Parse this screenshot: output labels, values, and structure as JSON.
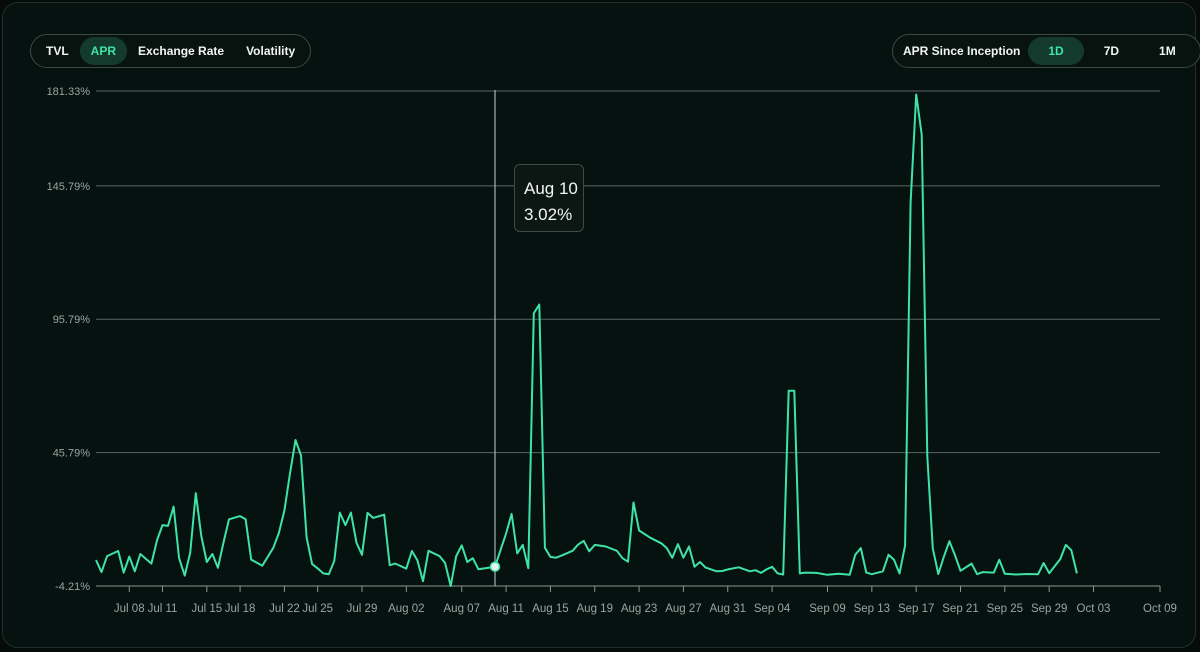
{
  "metric_tabs": [
    {
      "label": "TVL",
      "active": false
    },
    {
      "label": "APR",
      "active": true
    },
    {
      "label": "Exchange Rate",
      "active": false
    },
    {
      "label": "Volatility",
      "active": false
    }
  ],
  "range_group": {
    "label": "APR Since Inception",
    "options": [
      {
        "label": "1D",
        "active": true
      },
      {
        "label": "7D",
        "active": false
      },
      {
        "label": "1M",
        "active": false
      }
    ]
  },
  "tooltip": {
    "date": "Aug 10",
    "value": "3.02%"
  },
  "colors": {
    "line": "#3fe3a5",
    "accent": "#3fe3a5",
    "background": "#040b09"
  },
  "chart_data": {
    "type": "line",
    "ylim": [
      -4.21,
      181.33
    ],
    "y_ticks": [
      {
        "value": 181.33,
        "label": "181.33%"
      },
      {
        "value": 145.79,
        "label": "145.79%"
      },
      {
        "value": 95.79,
        "label": "95.79%"
      },
      {
        "value": 45.79,
        "label": "45.79%"
      },
      {
        "value": -4.21,
        "label": "-4.21%"
      }
    ],
    "x_start": "2024-07-05",
    "x_end": "2024-10-09",
    "x_ticks": [
      "Jul 08",
      "Jul 11",
      "Jul 15",
      "Jul 18",
      "Jul 22",
      "Jul 25",
      "Jul 29",
      "Aug 02",
      "Aug 07",
      "Aug 11",
      "Aug 15",
      "Aug 19",
      "Aug 23",
      "Aug 27",
      "Aug 31",
      "Sep 04",
      "Sep 09",
      "Sep 13",
      "Sep 17",
      "Sep 21",
      "Sep 25",
      "Sep 29",
      "Oct 03",
      "Oct 09"
    ],
    "x_tick_dates": [
      "2024-07-08",
      "2024-07-11",
      "2024-07-15",
      "2024-07-18",
      "2024-07-22",
      "2024-07-25",
      "2024-07-29",
      "2024-08-02",
      "2024-08-07",
      "2024-08-11",
      "2024-08-15",
      "2024-08-19",
      "2024-08-23",
      "2024-08-27",
      "2024-08-31",
      "2024-09-04",
      "2024-09-09",
      "2024-09-13",
      "2024-09-17",
      "2024-09-21",
      "2024-09-25",
      "2024-09-29",
      "2024-10-03",
      "2024-10-09"
    ],
    "highlight": {
      "date": "2024-08-10",
      "value": 3.02
    },
    "series": [
      {
        "values": [
          [
            "2024-07-05",
            5.5
          ],
          [
            "2024-07-05T12:00",
            1.0
          ],
          [
            "2024-07-06",
            7.0
          ],
          [
            "2024-07-07",
            8.9
          ],
          [
            "2024-07-07T12:00",
            0.8
          ],
          [
            "2024-07-08",
            6.8
          ],
          [
            "2024-07-08T12:00",
            1.3
          ],
          [
            "2024-07-09",
            7.8
          ],
          [
            "2024-07-10",
            4.2
          ],
          [
            "2024-07-10T12:00",
            12.9
          ],
          [
            "2024-07-11",
            18.6
          ],
          [
            "2024-07-11T12:00",
            18.3
          ],
          [
            "2024-07-12",
            25.5
          ],
          [
            "2024-07-12T12:00",
            6.2
          ],
          [
            "2024-07-13",
            -0.3
          ],
          [
            "2024-07-13T12:00",
            8.2
          ],
          [
            "2024-07-14",
            30.6
          ],
          [
            "2024-07-14T12:00",
            14.5
          ],
          [
            "2024-07-15",
            4.8
          ],
          [
            "2024-07-15T12:00",
            7.8
          ],
          [
            "2024-07-16",
            2.6
          ],
          [
            "2024-07-16T12:00",
            12.1
          ],
          [
            "2024-07-17",
            20.8
          ],
          [
            "2024-07-18",
            22.0
          ],
          [
            "2024-07-18T12:00",
            20.8
          ],
          [
            "2024-07-19",
            5.7
          ],
          [
            "2024-07-20",
            3.4
          ],
          [
            "2024-07-21",
            10.1
          ],
          [
            "2024-07-21T12:00",
            15.7
          ],
          [
            "2024-07-22",
            24.1
          ],
          [
            "2024-07-22T12:00",
            38.0
          ],
          [
            "2024-07-23",
            50.5
          ],
          [
            "2024-07-23T12:00",
            44.7
          ],
          [
            "2024-07-24",
            14.0
          ],
          [
            "2024-07-24T12:00",
            4.0
          ],
          [
            "2024-07-25",
            2.4
          ],
          [
            "2024-07-25T12:00",
            0.5
          ],
          [
            "2024-07-26",
            0.2
          ],
          [
            "2024-07-26T12:00",
            5.2
          ],
          [
            "2024-07-27",
            23.3
          ],
          [
            "2024-07-27T12:00",
            18.6
          ],
          [
            "2024-07-28",
            23.3
          ],
          [
            "2024-07-28T12:00",
            12.0
          ],
          [
            "2024-07-29",
            7.5
          ],
          [
            "2024-07-29T12:00",
            23.2
          ],
          [
            "2024-07-30",
            21.3
          ],
          [
            "2024-07-31",
            22.5
          ],
          [
            "2024-07-31T12:00",
            3.6
          ],
          [
            "2024-08-01",
            4.2
          ],
          [
            "2024-08-02",
            2.3
          ],
          [
            "2024-08-02T12:00",
            8.9
          ],
          [
            "2024-08-03",
            5.4
          ],
          [
            "2024-08-03T12:00",
            -2.4
          ],
          [
            "2024-08-04",
            9.0
          ],
          [
            "2024-08-05",
            7.0
          ],
          [
            "2024-08-05T12:00",
            4.4
          ],
          [
            "2024-08-06",
            -4.2
          ],
          [
            "2024-08-06T12:00",
            7.0
          ],
          [
            "2024-08-07",
            11.0
          ],
          [
            "2024-08-07T12:00",
            4.8
          ],
          [
            "2024-08-08",
            6.2
          ],
          [
            "2024-08-08T12:00",
            2.1
          ],
          [
            "2024-08-10",
            3.02
          ],
          [
            "2024-08-10T12:00",
            9.2
          ],
          [
            "2024-08-11",
            15.5
          ],
          [
            "2024-08-11T12:00",
            22.8
          ],
          [
            "2024-08-12",
            8.0
          ],
          [
            "2024-08-12T12:00",
            11.2
          ],
          [
            "2024-08-13",
            2.5
          ],
          [
            "2024-08-13T12:00",
            98.0
          ],
          [
            "2024-08-14",
            101.3
          ],
          [
            "2024-08-14T12:00",
            10.1
          ],
          [
            "2024-08-15",
            6.7
          ],
          [
            "2024-08-15T12:00",
            6.4
          ],
          [
            "2024-08-16",
            7.2
          ],
          [
            "2024-08-17",
            9.0
          ],
          [
            "2024-08-17T12:00",
            11.3
          ],
          [
            "2024-08-18",
            12.7
          ],
          [
            "2024-08-18T12:00",
            8.8
          ],
          [
            "2024-08-19",
            11.2
          ],
          [
            "2024-08-20",
            10.6
          ],
          [
            "2024-08-21",
            9.0
          ],
          [
            "2024-08-21T12:00",
            6.2
          ],
          [
            "2024-08-22",
            4.9
          ],
          [
            "2024-08-22T12:00",
            27.1
          ],
          [
            "2024-08-23",
            16.6
          ],
          [
            "2024-08-24",
            13.9
          ],
          [
            "2024-08-25",
            11.8
          ],
          [
            "2024-08-25T12:00",
            10.0
          ],
          [
            "2024-08-26",
            6.4
          ],
          [
            "2024-08-26T12:00",
            11.5
          ],
          [
            "2024-08-27",
            6.4
          ],
          [
            "2024-08-27T12:00",
            10.6
          ],
          [
            "2024-08-28",
            3.0
          ],
          [
            "2024-08-28T12:00",
            4.8
          ],
          [
            "2024-08-29",
            2.7
          ],
          [
            "2024-08-30",
            1.3
          ],
          [
            "2024-08-30T12:00",
            1.4
          ],
          [
            "2024-08-31",
            2.0
          ],
          [
            "2024-09-01",
            2.8
          ],
          [
            "2024-09-02",
            1.3
          ],
          [
            "2024-09-02T12:00",
            1.7
          ],
          [
            "2024-09-03",
            0.7
          ],
          [
            "2024-09-03T12:00",
            2.0
          ],
          [
            "2024-09-04",
            3.0
          ],
          [
            "2024-09-04T12:00",
            0.5
          ],
          [
            "2024-09-05",
            0.1
          ],
          [
            "2024-09-05T12:00",
            69.0
          ],
          [
            "2024-09-06",
            69.0
          ],
          [
            "2024-09-06T12:00",
            0.5
          ],
          [
            "2024-09-07",
            0.8
          ],
          [
            "2024-09-08",
            0.7
          ],
          [
            "2024-09-09",
            0.0
          ],
          [
            "2024-09-10",
            0.4
          ],
          [
            "2024-09-11",
            0.0
          ],
          [
            "2024-09-11T12:00",
            7.5
          ],
          [
            "2024-09-12",
            10.0
          ],
          [
            "2024-09-12T12:00",
            0.8
          ],
          [
            "2024-09-13",
            0.2
          ],
          [
            "2024-09-14",
            1.3
          ],
          [
            "2024-09-14T12:00",
            7.5
          ],
          [
            "2024-09-15",
            5.6
          ],
          [
            "2024-09-15T12:00",
            0.5
          ],
          [
            "2024-09-16",
            11.0
          ],
          [
            "2024-09-16T12:00",
            139.5
          ],
          [
            "2024-09-17",
            180.0
          ],
          [
            "2024-09-17T12:00",
            165.0
          ],
          [
            "2024-09-18",
            44.4
          ],
          [
            "2024-09-18T12:00",
            9.8
          ],
          [
            "2024-09-19",
            0.3
          ],
          [
            "2024-09-19T12:00",
            6.8
          ],
          [
            "2024-09-20",
            12.6
          ],
          [
            "2024-09-20T12:00",
            7.3
          ],
          [
            "2024-09-21",
            1.5
          ],
          [
            "2024-09-22",
            4.2
          ],
          [
            "2024-09-22T12:00",
            0.2
          ],
          [
            "2024-09-23",
            1.0
          ],
          [
            "2024-09-24",
            0.8
          ],
          [
            "2024-09-24T12:00",
            5.6
          ],
          [
            "2024-09-25",
            0.4
          ],
          [
            "2024-09-26",
            0.1
          ],
          [
            "2024-09-27",
            0.3
          ],
          [
            "2024-09-28",
            0.2
          ],
          [
            "2024-09-28T12:00",
            4.4
          ],
          [
            "2024-09-29",
            0.6
          ],
          [
            "2024-09-30",
            5.9
          ],
          [
            "2024-09-30T12:00",
            11.2
          ],
          [
            "2024-10-01",
            9.2
          ],
          [
            "2024-10-01T12:00",
            0.5
          ]
        ]
      }
    ]
  }
}
